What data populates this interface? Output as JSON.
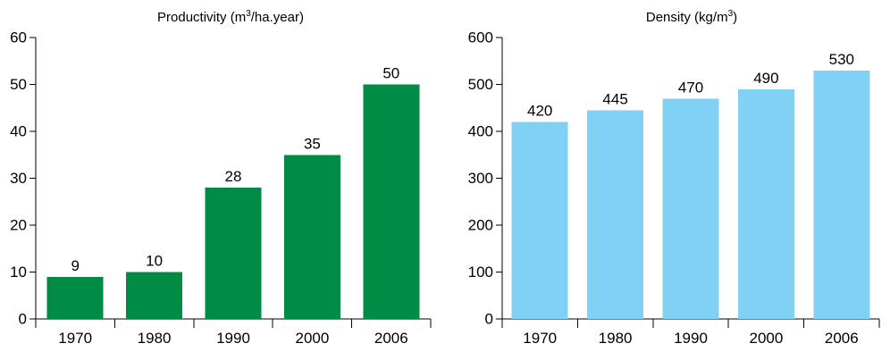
{
  "chart_data": [
    {
      "type": "bar",
      "title_prefix": "Productivity (m",
      "title_sup": "3",
      "title_suffix": "/ha.year)",
      "categories": [
        "1970",
        "1980",
        "1990",
        "2000",
        "2006"
      ],
      "values": [
        9,
        10,
        28,
        35,
        50
      ],
      "data_labels": [
        "9",
        "10",
        "28",
        "35",
        "50"
      ],
      "ylim": [
        0,
        60
      ],
      "yticks": [
        0,
        10,
        20,
        30,
        40,
        50,
        60
      ],
      "ytick_labels": [
        "0",
        "10",
        "20",
        "30",
        "40",
        "50",
        "60"
      ],
      "xlabel": "",
      "ylabel": "",
      "grid": false,
      "bar_color": "#008c44"
    },
    {
      "type": "bar",
      "title_prefix": "Density (kg/m",
      "title_sup": "3",
      "title_suffix": ")",
      "categories": [
        "1970",
        "1980",
        "1990",
        "2000",
        "2006"
      ],
      "values": [
        420,
        445,
        470,
        490,
        530
      ],
      "data_labels": [
        "420",
        "445",
        "470",
        "490",
        "530"
      ],
      "ylim": [
        0,
        600
      ],
      "yticks": [
        0,
        100,
        200,
        300,
        400,
        500,
        600
      ],
      "ytick_labels": [
        "0",
        "100",
        "200",
        "300",
        "400",
        "500",
        "600"
      ],
      "xlabel": "",
      "ylabel": "",
      "grid": false,
      "bar_color": "#81d1f5"
    }
  ]
}
